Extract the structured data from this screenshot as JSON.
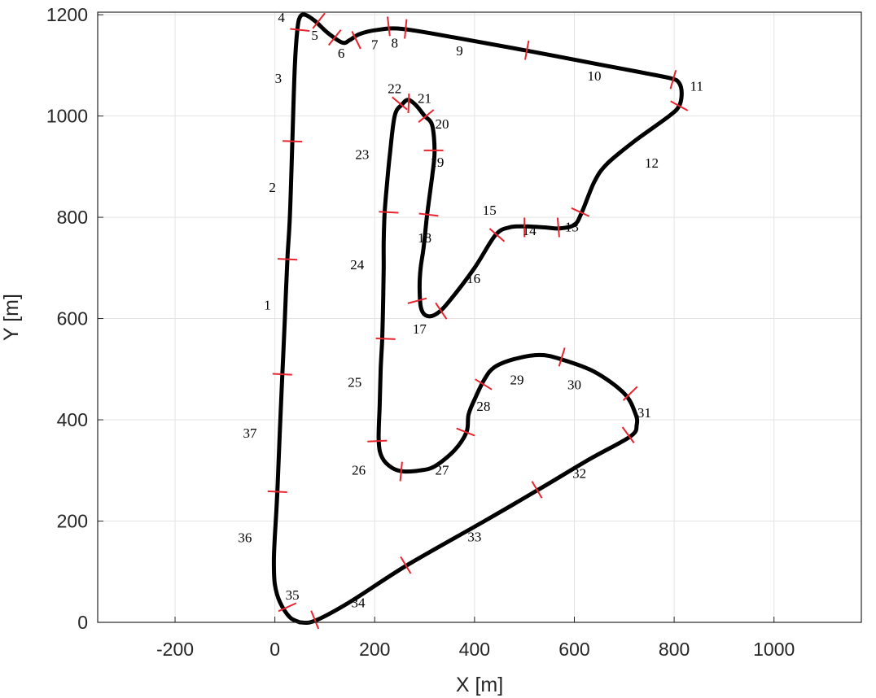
{
  "chart_data": {
    "type": "line",
    "title": "",
    "xlabel": "X [m]",
    "ylabel": "Y [m]",
    "xlim": [
      -355,
      1175
    ],
    "ylim": [
      0,
      1205
    ],
    "grid": true,
    "xticks": [
      -200,
      0,
      200,
      400,
      600,
      800,
      1000
    ],
    "yticks": [
      0,
      200,
      400,
      600,
      800,
      1000,
      1200
    ],
    "colors": {
      "track": "#000000",
      "markers": "#e8242e",
      "grid": "#e3e3e3"
    },
    "track": [
      [
        50,
        0
      ],
      [
        80,
        3
      ],
      [
        150,
        40
      ],
      [
        265,
        113
      ],
      [
        420,
        200
      ],
      [
        528,
        262
      ],
      [
        630,
        322
      ],
      [
        712,
        367
      ],
      [
        725,
        390
      ],
      [
        722,
        413
      ],
      [
        700,
        452
      ],
      [
        640,
        495
      ],
      [
        572,
        520
      ],
      [
        530,
        528
      ],
      [
        480,
        520
      ],
      [
        440,
        504
      ],
      [
        420,
        480
      ],
      [
        400,
        440
      ],
      [
        388,
        410
      ],
      [
        384,
        376
      ],
      [
        360,
        340
      ],
      [
        320,
        308
      ],
      [
        290,
        300
      ],
      [
        258,
        298
      ],
      [
        235,
        305
      ],
      [
        215,
        325
      ],
      [
        208,
        358
      ],
      [
        210,
        430
      ],
      [
        212,
        500
      ],
      [
        215,
        560
      ],
      [
        217,
        640
      ],
      [
        218,
        700
      ],
      [
        218,
        750
      ],
      [
        220,
        810
      ],
      [
        225,
        870
      ],
      [
        230,
        920
      ],
      [
        240,
        1000
      ],
      [
        255,
        1023
      ],
      [
        267,
        1032
      ],
      [
        282,
        1022
      ],
      [
        300,
        1000
      ],
      [
        315,
        982
      ],
      [
        320,
        930
      ],
      [
        315,
        880
      ],
      [
        305,
        805
      ],
      [
        298,
        740
      ],
      [
        292,
        700
      ],
      [
        290,
        660
      ],
      [
        293,
        620
      ],
      [
        305,
        605
      ],
      [
        325,
        610
      ],
      [
        350,
        635
      ],
      [
        400,
        700
      ],
      [
        442,
        765
      ],
      [
        470,
        780
      ],
      [
        500,
        782
      ],
      [
        540,
        780
      ],
      [
        570,
        778
      ],
      [
        600,
        785
      ],
      [
        615,
        810
      ],
      [
        640,
        870
      ],
      [
        665,
        905
      ],
      [
        720,
        950
      ],
      [
        790,
        1000
      ],
      [
        810,
        1020
      ],
      [
        815,
        1045
      ],
      [
        810,
        1065
      ],
      [
        795,
        1074
      ],
      [
        740,
        1085
      ],
      [
        660,
        1100
      ],
      [
        500,
        1130
      ],
      [
        360,
        1155
      ],
      [
        255,
        1172
      ],
      [
        205,
        1170
      ],
      [
        170,
        1162
      ],
      [
        150,
        1150
      ],
      [
        135,
        1145
      ],
      [
        105,
        1165
      ],
      [
        80,
        1188
      ],
      [
        60,
        1200
      ],
      [
        50,
        1195
      ],
      [
        45,
        1170
      ],
      [
        40,
        1100
      ],
      [
        35,
        950
      ],
      [
        30,
        800
      ],
      [
        25,
        717
      ],
      [
        20,
        600
      ],
      [
        15,
        490
      ],
      [
        10,
        380
      ],
      [
        5,
        258
      ],
      [
        0,
        170
      ],
      [
        -2,
        120
      ],
      [
        0,
        75
      ],
      [
        10,
        40
      ],
      [
        30,
        10
      ],
      [
        50,
        0
      ]
    ],
    "markers": [
      [
        50,
        1170
      ],
      [
        88,
        1188
      ],
      [
        120,
        1155
      ],
      [
        163,
        1150
      ],
      [
        228,
        1177
      ],
      [
        262,
        1172
      ],
      [
        505,
        1130
      ],
      [
        798,
        1072
      ],
      [
        810,
        1020
      ],
      [
        612,
        810
      ],
      [
        568,
        780
      ],
      [
        500,
        780
      ],
      [
        445,
        765
      ],
      [
        333,
        615
      ],
      [
        285,
        635
      ],
      [
        308,
        805
      ],
      [
        318,
        932
      ],
      [
        303,
        1000
      ],
      [
        268,
        1025
      ],
      [
        250,
        1025
      ],
      [
        228,
        810
      ],
      [
        222,
        560
      ],
      [
        205,
        358
      ],
      [
        253,
        298
      ],
      [
        382,
        376
      ],
      [
        418,
        470
      ],
      [
        575,
        524
      ],
      [
        712,
        452
      ],
      [
        708,
        370
      ],
      [
        525,
        262
      ],
      [
        262,
        113
      ],
      [
        80,
        5
      ],
      [
        25,
        30
      ],
      [
        5,
        258
      ],
      [
        15,
        490
      ],
      [
        25,
        717
      ],
      [
        35,
        950
      ]
    ],
    "segment_labels": [
      {
        "text": "1",
        "x": -15,
        "y": 618
      },
      {
        "text": "2",
        "x": -5,
        "y": 850
      },
      {
        "text": "3",
        "x": 7,
        "y": 1065
      },
      {
        "text": "4",
        "x": 13,
        "y": 1186
      },
      {
        "text": "5",
        "x": 80,
        "y": 1150
      },
      {
        "text": "6",
        "x": 133,
        "y": 1115
      },
      {
        "text": "7",
        "x": 200,
        "y": 1132
      },
      {
        "text": "8",
        "x": 240,
        "y": 1135
      },
      {
        "text": "9",
        "x": 370,
        "y": 1120
      },
      {
        "text": "10",
        "x": 640,
        "y": 1070
      },
      {
        "text": "11",
        "x": 845,
        "y": 1050
      },
      {
        "text": "12",
        "x": 755,
        "y": 898
      },
      {
        "text": "13",
        "x": 595,
        "y": 772
      },
      {
        "text": "14",
        "x": 510,
        "y": 765
      },
      {
        "text": "15",
        "x": 430,
        "y": 805
      },
      {
        "text": "16",
        "x": 398,
        "y": 670
      },
      {
        "text": "17",
        "x": 290,
        "y": 570
      },
      {
        "text": "18",
        "x": 300,
        "y": 750
      },
      {
        "text": "19",
        "x": 325,
        "y": 900
      },
      {
        "text": "20",
        "x": 335,
        "y": 975
      },
      {
        "text": "21",
        "x": 300,
        "y": 1026
      },
      {
        "text": "22",
        "x": 240,
        "y": 1045
      },
      {
        "text": "23",
        "x": 175,
        "y": 915
      },
      {
        "text": "24",
        "x": 165,
        "y": 697
      },
      {
        "text": "25",
        "x": 160,
        "y": 465
      },
      {
        "text": "26",
        "x": 168,
        "y": 292
      },
      {
        "text": "27",
        "x": 335,
        "y": 292
      },
      {
        "text": "28",
        "x": 418,
        "y": 418
      },
      {
        "text": "29",
        "x": 485,
        "y": 470
      },
      {
        "text": "30",
        "x": 600,
        "y": 460
      },
      {
        "text": "31",
        "x": 740,
        "y": 405
      },
      {
        "text": "32",
        "x": 610,
        "y": 285
      },
      {
        "text": "33",
        "x": 400,
        "y": 160
      },
      {
        "text": "34",
        "x": 167,
        "y": 30
      },
      {
        "text": "35",
        "x": 35,
        "y": 45
      },
      {
        "text": "36",
        "x": -60,
        "y": 158
      },
      {
        "text": "37",
        "x": -50,
        "y": 365
      }
    ]
  }
}
